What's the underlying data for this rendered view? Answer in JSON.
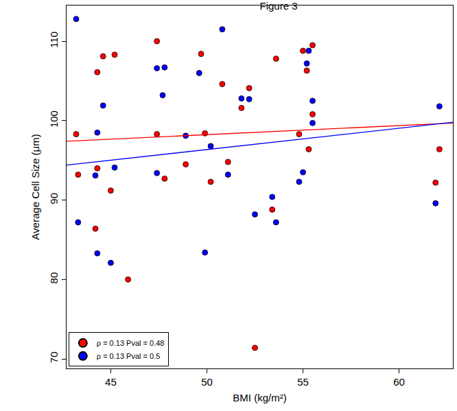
{
  "chart_data": {
    "type": "scatter",
    "title": "Figure 3",
    "x_label": "BMI (kg/m²)",
    "y_label": "Average Cell Size (μm)",
    "xlim": [
      42.7,
      62.8
    ],
    "xticks": [
      45,
      50,
      55,
      60
    ],
    "ylim": [
      68.8,
      114.5
    ],
    "yticks": [
      70,
      80,
      90,
      100,
      110
    ],
    "grid": false,
    "legend": "lower left",
    "marker": "circle",
    "series": [
      {
        "name": "ρ = 0.13 Pval = 0.48",
        "color": "#ff0000",
        "x": [
          43.2,
          43.3,
          44.2,
          44.3,
          44.3,
          44.6,
          45.0,
          45.2,
          45.9,
          47.4,
          47.4,
          47.8,
          48.9,
          49.7,
          49.9,
          50.2,
          50.8,
          51.1,
          51.8,
          52.2,
          52.5,
          53.4,
          53.6,
          54.8,
          55.0,
          55.2,
          55.3,
          55.5,
          55.5,
          61.9,
          62.1
        ],
        "values": [
          98.3,
          93.2,
          86.4,
          94.0,
          106.1,
          108.1,
          91.2,
          108.3,
          80.0,
          110.0,
          98.3,
          92.7,
          94.5,
          108.4,
          98.4,
          92.3,
          104.6,
          94.8,
          101.6,
          104.1,
          71.4,
          88.8,
          107.8,
          98.3,
          108.8,
          106.3,
          96.4,
          109.5,
          100.8,
          92.2,
          96.4
        ],
        "fit_x": [
          42.7,
          62.8
        ],
        "fit_values": [
          97.4,
          99.7
        ]
      },
      {
        "name": "ρ = 0.13 Pval = 0.5",
        "color": "#0000ff",
        "x": [
          43.2,
          43.3,
          44.2,
          44.3,
          44.3,
          44.6,
          45.0,
          45.2,
          47.4,
          47.4,
          47.7,
          47.8,
          48.9,
          49.6,
          49.9,
          50.2,
          50.8,
          51.1,
          51.8,
          52.2,
          52.5,
          53.4,
          53.6,
          54.8,
          55.0,
          55.2,
          55.3,
          55.5,
          55.5,
          61.9,
          62.1
        ],
        "values": [
          112.8,
          87.2,
          93.1,
          98.5,
          83.3,
          101.9,
          82.1,
          94.1,
          106.6,
          93.4,
          103.2,
          106.7,
          98.1,
          106.0,
          83.4,
          96.8,
          111.5,
          93.2,
          102.8,
          102.7,
          88.2,
          90.4,
          87.2,
          92.3,
          93.5,
          107.2,
          108.8,
          102.5,
          99.7,
          89.6,
          101.8
        ],
        "fit_x": [
          42.7,
          62.8
        ],
        "fit_values": [
          94.4,
          99.8
        ]
      }
    ]
  }
}
